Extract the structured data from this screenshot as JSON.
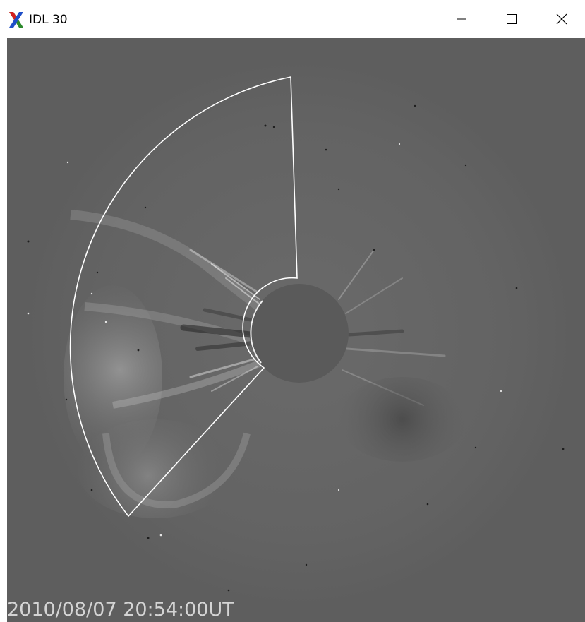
{
  "window": {
    "title": "IDL 30",
    "icon": "idl-x-logo-icon",
    "controls": {
      "minimize_icon": "minimize-icon",
      "maximize_icon": "maximize-icon",
      "close_icon": "close-icon"
    }
  },
  "image": {
    "kind": "coronagraph-difference-image",
    "timestamp": "2010/08/07 20:54:00UT",
    "background_color": "#5e5e5e",
    "occulter_color": "#5a5a5a",
    "outline_color": "#ffffff"
  }
}
